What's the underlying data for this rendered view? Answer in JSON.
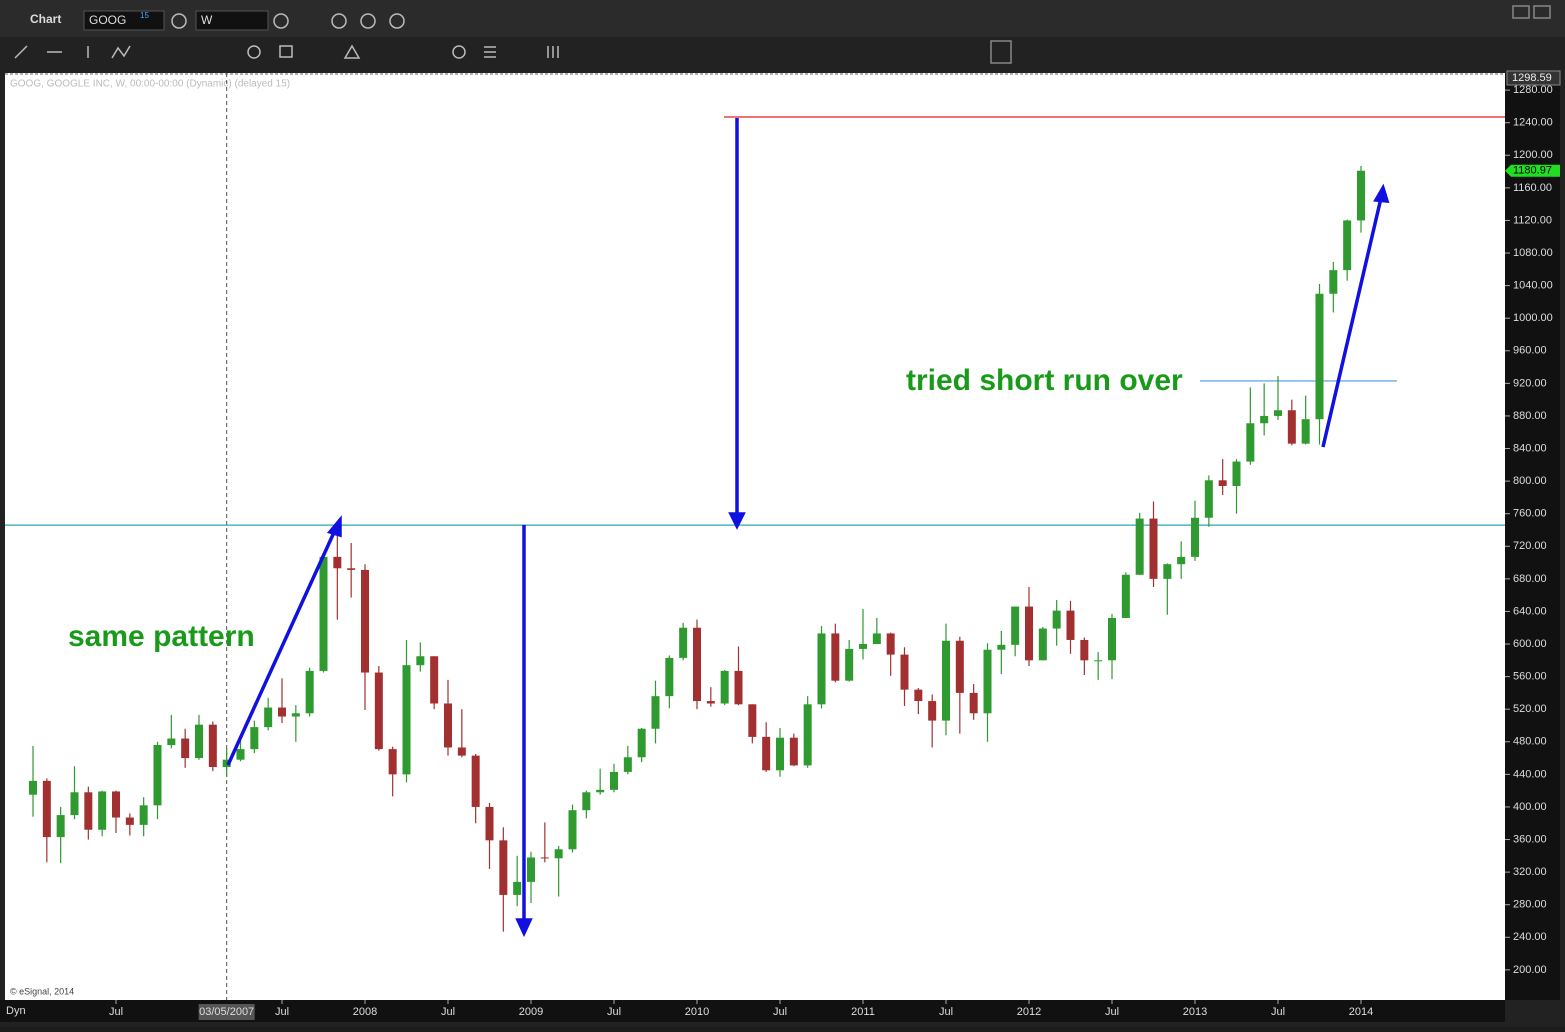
{
  "window": {
    "title": "Chart",
    "symbol": "GOOG",
    "symbol_badge": "15",
    "interval": "W"
  },
  "chart_data": {
    "type": "candlestick",
    "info": "GOOG, GOOGLE INC, W, 00:00-00:00 (Dynamic) (delayed 15)",
    "copyright": "© eSignal, 2014",
    "corner_label": "Dyn",
    "crosshair": {
      "category": "2007-03",
      "label": "03/05/2007"
    },
    "top_label": 1298.59,
    "last_price": 1180.97,
    "up_color": "#2f9a2f",
    "down_color": "#a33030",
    "categories": [
      "2006-01",
      "2006-02",
      "2006-03",
      "2006-04",
      "2006-05",
      "2006-06",
      "2006-07",
      "2006-08",
      "2006-09",
      "2006-10",
      "2006-11",
      "2006-12",
      "2007-01",
      "2007-02",
      "2007-03",
      "2007-04",
      "2007-05",
      "2007-06",
      "2007-07",
      "2007-08",
      "2007-09",
      "2007-10",
      "2007-11",
      "2007-12",
      "2008-01",
      "2008-02",
      "2008-03",
      "2008-04",
      "2008-05",
      "2008-06",
      "2008-07",
      "2008-08",
      "2008-09",
      "2008-10",
      "2008-11",
      "2008-12",
      "2009-01",
      "2009-02",
      "2009-03",
      "2009-04",
      "2009-05",
      "2009-06",
      "2009-07",
      "2009-08",
      "2009-09",
      "2009-10",
      "2009-11",
      "2009-12",
      "2010-01",
      "2010-02",
      "2010-03",
      "2010-04",
      "2010-05",
      "2010-06",
      "2010-07",
      "2010-08",
      "2010-09",
      "2010-10",
      "2010-11",
      "2010-12",
      "2011-01",
      "2011-02",
      "2011-03",
      "2011-04",
      "2011-05",
      "2011-06",
      "2011-07",
      "2011-08",
      "2011-09",
      "2011-10",
      "2011-11",
      "2011-12",
      "2012-01",
      "2012-02",
      "2012-03",
      "2012-04",
      "2012-05",
      "2012-06",
      "2012-07",
      "2012-08",
      "2012-09",
      "2012-10",
      "2012-11",
      "2012-12",
      "2013-01",
      "2013-02",
      "2013-03",
      "2013-04",
      "2013-05",
      "2013-06",
      "2013-07",
      "2013-08",
      "2013-09",
      "2013-10",
      "2013-11",
      "2013-12",
      "2014-01"
    ],
    "open": [
      415,
      432,
      363,
      390,
      418,
      372,
      419,
      387,
      378,
      402,
      476,
      484,
      460,
      501,
      449,
      458,
      471,
      498,
      522,
      511,
      515,
      567,
      707,
      693,
      691,
      565,
      471,
      440,
      574,
      585,
      527,
      473,
      463,
      400,
      359,
      292,
      308,
      338,
      337,
      348,
      396,
      418,
      421,
      443,
      461,
      496,
      536,
      583,
      620,
      530,
      527,
      567,
      526,
      486,
      445,
      485,
      451,
      526,
      613,
      555,
      594,
      600,
      613,
      587,
      544,
      530,
      506,
      604,
      540,
      515,
      593,
      599,
      646,
      580,
      619,
      641,
      605,
      580,
      580,
      632,
      685,
      754,
      680,
      698,
      707,
      755,
      801,
      794,
      824,
      871,
      880,
      887,
      846,
      876,
      1030,
      1059,
      1120
    ],
    "high": [
      475,
      435,
      400,
      450,
      425,
      420,
      420,
      392,
      412,
      480,
      513,
      496,
      513,
      505,
      472,
      482,
      506,
      534,
      558,
      525,
      571,
      710,
      747,
      724,
      698,
      573,
      474,
      605,
      602,
      585,
      556,
      520,
      465,
      405,
      375,
      340,
      345,
      381,
      352,
      403,
      420,
      447,
      453,
      475,
      497,
      555,
      586,
      626,
      630,
      547,
      568,
      597,
      526,
      504,
      497,
      490,
      536,
      622,
      625,
      605,
      643,
      632,
      614,
      596,
      546,
      538,
      625,
      609,
      551,
      601,
      616,
      646,
      670,
      621,
      654,
      653,
      608,
      590,
      637,
      688,
      761,
      775,
      699,
      726,
      776,
      807,
      827,
      827,
      915,
      920,
      929,
      900,
      905,
      1042,
      1069,
      1121,
      1187
    ],
    "low": [
      388,
      332,
      331,
      385,
      360,
      364,
      368,
      365,
      364,
      385,
      472,
      448,
      458,
      444,
      437,
      456,
      466,
      494,
      503,
      480,
      511,
      565,
      630,
      657,
      519,
      469,
      413,
      430,
      566,
      520,
      463,
      461,
      380,
      324,
      247,
      278,
      282,
      332,
      290,
      344,
      386,
      415,
      418,
      440,
      455,
      478,
      521,
      580,
      520,
      523,
      525,
      525,
      478,
      443,
      437,
      450,
      448,
      521,
      553,
      554,
      581,
      602,
      561,
      524,
      514,
      473,
      488,
      490,
      507,
      480,
      563,
      585,
      573,
      580,
      598,
      588,
      562,
      556,
      557,
      632,
      685,
      670,
      636,
      680,
      702,
      744,
      783,
      760,
      820,
      856,
      875,
      844,
      845,
      845,
      1007,
      1046,
      1105
    ],
    "close": [
      432,
      363,
      390,
      418,
      372,
      419,
      387,
      378,
      402,
      476,
      484,
      460,
      501,
      449,
      458,
      471,
      498,
      522,
      511,
      515,
      567,
      707,
      693,
      691,
      565,
      471,
      440,
      574,
      585,
      527,
      473,
      463,
      400,
      359,
      292,
      308,
      338,
      337,
      348,
      396,
      418,
      421,
      443,
      461,
      496,
      536,
      583,
      620,
      530,
      527,
      567,
      526,
      486,
      445,
      485,
      451,
      526,
      613,
      555,
      594,
      600,
      613,
      587,
      544,
      530,
      506,
      604,
      540,
      515,
      593,
      599,
      646,
      580,
      619,
      641,
      605,
      580,
      580,
      632,
      685,
      754,
      680,
      698,
      707,
      755,
      801,
      794,
      824,
      871,
      880,
      887,
      846,
      876,
      1030,
      1059,
      1120,
      1181
    ],
    "ylim": [
      163,
      1301
    ],
    "yticks": [
      {
        "value": 200,
        "label": "200.00"
      },
      {
        "value": 240,
        "label": "240.00"
      },
      {
        "value": 280,
        "label": "280.00"
      },
      {
        "value": 320,
        "label": "320.00"
      },
      {
        "value": 360,
        "label": "360.00"
      },
      {
        "value": 400,
        "label": "400.00"
      },
      {
        "value": 440,
        "label": "440.00"
      },
      {
        "value": 480,
        "label": "480.00"
      },
      {
        "value": 520,
        "label": "520.00"
      },
      {
        "value": 560,
        "label": "560.00"
      },
      {
        "value": 600,
        "label": "600.00"
      },
      {
        "value": 640,
        "label": "640.00"
      },
      {
        "value": 680,
        "label": "680.00"
      },
      {
        "value": 720,
        "label": "720.00"
      },
      {
        "value": 760,
        "label": "760.00"
      },
      {
        "value": 800,
        "label": "800.00"
      },
      {
        "value": 840,
        "label": "840.00"
      },
      {
        "value": 880,
        "label": "880.00"
      },
      {
        "value": 920,
        "label": "920.00"
      },
      {
        "value": 960,
        "label": "960.00"
      },
      {
        "value": 1000,
        "label": "1000.00"
      },
      {
        "value": 1040,
        "label": "1040.00"
      },
      {
        "value": 1080,
        "label": "1080.00"
      },
      {
        "value": 1120,
        "label": "1120.00"
      },
      {
        "value": 1160,
        "label": "1160.00"
      },
      {
        "value": 1200,
        "label": "1200.00"
      },
      {
        "value": 1240,
        "label": "1240.00"
      },
      {
        "value": 1280,
        "label": "1280.00"
      }
    ],
    "xticks": [
      {
        "value": "2006-07",
        "label": "Jul"
      },
      {
        "value": "2007-07",
        "label": "Jul"
      },
      {
        "value": "2008-01",
        "label": "2008"
      },
      {
        "value": "2008-07",
        "label": "Jul"
      },
      {
        "value": "2009-01",
        "label": "2009"
      },
      {
        "value": "2009-07",
        "label": "Jul"
      },
      {
        "value": "2010-01",
        "label": "2010"
      },
      {
        "value": "2010-07",
        "label": "Jul"
      },
      {
        "value": "2011-01",
        "label": "2011"
      },
      {
        "value": "2011-07",
        "label": "Jul"
      },
      {
        "value": "2012-01",
        "label": "2012"
      },
      {
        "value": "2012-07",
        "label": "Jul"
      },
      {
        "value": "2013-01",
        "label": "2013"
      },
      {
        "value": "2013-07",
        "label": "Jul"
      },
      {
        "value": "2014-01",
        "label": "2014"
      }
    ],
    "levels": [
      {
        "value": 746,
        "color": "#2aa6b8"
      },
      {
        "value": 1247,
        "color": "#e02020"
      }
    ],
    "annotations": [
      {
        "text": "same pattern"
      },
      {
        "text": "tried short run over",
        "level": 923
      }
    ]
  }
}
